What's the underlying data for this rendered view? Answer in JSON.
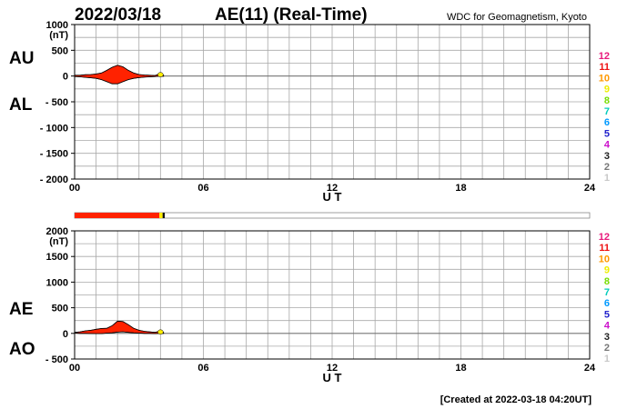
{
  "header": {
    "date": "2022/03/18",
    "title": "AE(11) (Real-Time)",
    "source": "WDC for Geomagnetism, Kyoto"
  },
  "footer": {
    "created": "[Created at 2022-03-18 04:20UT]"
  },
  "colors": {
    "fill": "#ff2200",
    "grid": "#a8a8a8",
    "axis": "#000000",
    "status_red": "#ff2200",
    "status_yellow": "#ffee00"
  },
  "legend": {
    "labels": [
      "12",
      "11",
      "10",
      "9",
      "8",
      "7",
      "6",
      "5",
      "4",
      "3",
      "2",
      "1"
    ],
    "colors": [
      "#e8197c",
      "#ee1111",
      "#ff9900",
      "#eeee00",
      "#77dd00",
      "#00ccbb",
      "#0099ff",
      "#2222cc",
      "#cc11cc",
      "#222222",
      "#777777",
      "#c8c8c8"
    ]
  },
  "status_bar": {
    "segments": [
      {
        "from": 0,
        "to": 3.95,
        "color": "#ff2200"
      },
      {
        "from": 3.95,
        "to": 4.1,
        "color": "#ffee00"
      },
      {
        "from": 4.1,
        "to": 4.2,
        "color": "#111111"
      }
    ]
  },
  "chart_data": [
    {
      "type": "area",
      "panel": "AU/AL",
      "ylabel_top": "AU",
      "ylabel_bottom": "AL",
      "unit": "(nT)",
      "xlabel": "U T",
      "xlim": [
        0,
        24
      ],
      "ylim": [
        -2000,
        1000
      ],
      "xticks": [
        0,
        6,
        12,
        18,
        24
      ],
      "xtick_labels": [
        "00",
        "06",
        "12",
        "18",
        "24"
      ],
      "yticks": [
        1000,
        500,
        0,
        -500,
        -1000,
        -1500,
        -2000
      ],
      "ytick_labels": [
        "1000",
        "500",
        "0",
        "- 500",
        "- 1000",
        "- 1500",
        "- 2000"
      ],
      "x_grid_step": 1,
      "y_grid_step": 250,
      "grid": true,
      "series": [
        {
          "x": [
            0,
            0.25,
            0.5,
            0.75,
            1.0,
            1.25,
            1.5,
            1.75,
            2.0,
            2.25,
            2.5,
            2.75,
            3.0,
            3.25,
            3.5,
            3.75,
            3.9,
            4.0,
            4.15
          ],
          "values": [
            15,
            15,
            25,
            30,
            40,
            60,
            110,
            170,
            210,
            180,
            110,
            60,
            30,
            20,
            15,
            10,
            35,
            60,
            10
          ]
        },
        {
          "x": [
            0,
            0.25,
            0.5,
            0.75,
            1.0,
            1.25,
            1.5,
            1.75,
            2.0,
            2.25,
            2.5,
            2.75,
            3.0,
            3.25,
            3.5,
            3.75,
            3.9,
            4.0,
            4.15
          ],
          "values": [
            -10,
            -15,
            -25,
            -35,
            -45,
            -70,
            -110,
            -150,
            -150,
            -110,
            -70,
            -45,
            -30,
            -20,
            -15,
            -10,
            -5,
            -5,
            -5
          ]
        }
      ]
    },
    {
      "type": "area",
      "panel": "AE/AO",
      "ylabel_top": "AE",
      "ylabel_bottom": "AO",
      "unit": "(nT)",
      "xlabel": "U T",
      "xlim": [
        0,
        24
      ],
      "ylim": [
        -500,
        2000
      ],
      "xticks": [
        0,
        6,
        12,
        18,
        24
      ],
      "xtick_labels": [
        "00",
        "06",
        "12",
        "18",
        "24"
      ],
      "yticks": [
        2000,
        1500,
        1000,
        500,
        0,
        -500
      ],
      "ytick_labels": [
        "2000",
        "1500",
        "1000",
        "500",
        "0",
        "- 500"
      ],
      "x_grid_step": 1,
      "y_grid_step": 250,
      "grid": true,
      "series": [
        {
          "x": [
            0,
            0.25,
            0.5,
            0.75,
            1.0,
            1.25,
            1.5,
            1.75,
            2.0,
            2.25,
            2.5,
            2.75,
            3.0,
            3.25,
            3.5,
            3.75,
            3.9,
            4.0,
            4.15
          ],
          "values": [
            20,
            30,
            50,
            60,
            80,
            95,
            100,
            150,
            240,
            230,
            170,
            100,
            60,
            40,
            30,
            20,
            35,
            60,
            15
          ]
        },
        {
          "x": [
            0,
            0.25,
            0.5,
            0.75,
            1.0,
            1.25,
            1.5,
            1.75,
            2.0,
            2.25,
            2.5,
            2.75,
            3.0,
            3.25,
            3.5,
            3.75,
            3.9,
            4.0,
            4.15
          ],
          "values": [
            5,
            0,
            0,
            -3,
            -5,
            -5,
            5,
            10,
            25,
            30,
            20,
            10,
            5,
            0,
            0,
            -5,
            0,
            0,
            0
          ]
        }
      ]
    }
  ]
}
